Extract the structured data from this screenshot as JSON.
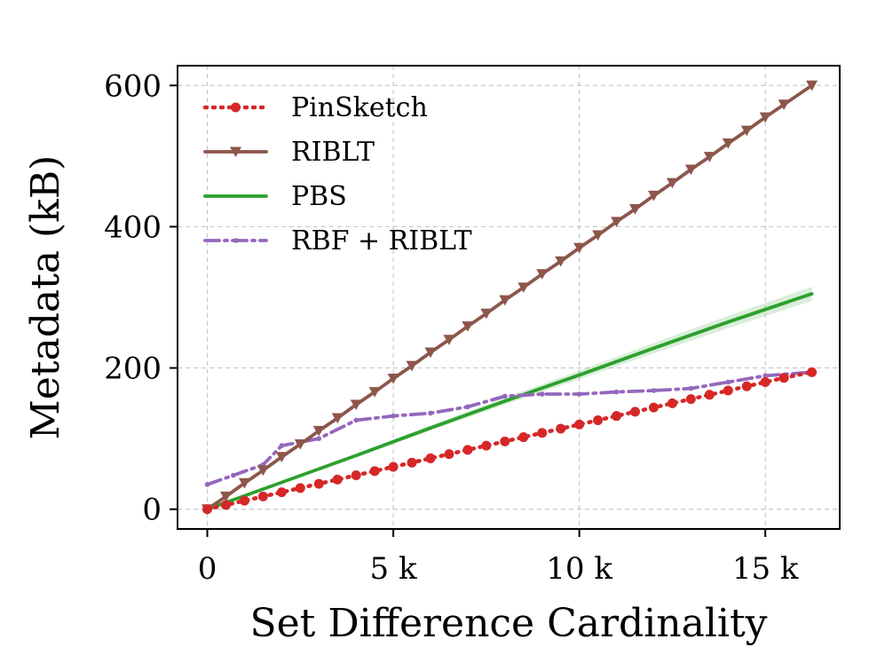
{
  "chart_data": {
    "type": "line",
    "xlabel": "Set Difference Cardinality",
    "ylabel": "Metadata (kB)",
    "xlim": [
      -800,
      17000
    ],
    "ylim": [
      -28,
      628
    ],
    "xticks": [
      0,
      5000,
      10000,
      15000
    ],
    "xtick_labels": [
      "0",
      "5 k",
      "10 k",
      "15 k"
    ],
    "yticks": [
      0,
      200,
      400,
      600
    ],
    "ytick_labels": [
      "0",
      "200",
      "400",
      "600"
    ],
    "grid": true,
    "legend_position": "top-left",
    "series": [
      {
        "name": "PinSketch",
        "color": "#d62728",
        "line_style": "dotted",
        "marker": "circle",
        "x": [
          0,
          500,
          1000,
          1500,
          2000,
          2500,
          3000,
          3500,
          4000,
          4500,
          5000,
          5500,
          6000,
          6500,
          7000,
          7500,
          8000,
          8500,
          9000,
          9500,
          10000,
          10500,
          11000,
          11500,
          12000,
          12500,
          13000,
          13500,
          14000,
          14500,
          15000,
          15500,
          16250
        ],
        "y": [
          0,
          6,
          12,
          18,
          24,
          30,
          36,
          42,
          48,
          54,
          60,
          66,
          72,
          78,
          84,
          90,
          96,
          102,
          108,
          114,
          120,
          126,
          132,
          138,
          144,
          150,
          156,
          162,
          168,
          174,
          180,
          186,
          194
        ]
      },
      {
        "name": "RIBLT",
        "color": "#8c564b",
        "line_style": "solid",
        "marker": "triangle-down",
        "x": [
          0,
          500,
          1000,
          1500,
          2000,
          2500,
          3000,
          3500,
          4000,
          4500,
          5000,
          5500,
          6000,
          6500,
          7000,
          7500,
          8000,
          8500,
          9000,
          9500,
          10000,
          10500,
          11000,
          11500,
          12000,
          12500,
          13000,
          13500,
          14000,
          14500,
          15000,
          15500,
          16250
        ],
        "y": [
          0,
          18,
          37,
          55,
          74,
          92,
          111,
          129,
          148,
          166,
          185,
          203,
          222,
          240,
          259,
          277,
          296,
          314,
          333,
          351,
          370,
          388,
          407,
          425,
          444,
          462,
          481,
          499,
          518,
          536,
          555,
          573,
          600
        ]
      },
      {
        "name": "PBS",
        "color": "#2ca02c",
        "line_style": "solid",
        "marker": "none",
        "x": [
          0,
          2000,
          4000,
          6000,
          8000,
          10000,
          12000,
          14000,
          16250
        ],
        "y": [
          0,
          38,
          76,
          115,
          153,
          190,
          228,
          265,
          305
        ]
      },
      {
        "name": "RBF + RIBLT",
        "color": "#9467bd",
        "line_style": "dashdot",
        "marker": "point",
        "x": [
          0,
          700,
          1500,
          2000,
          3000,
          4000,
          5000,
          6000,
          7000,
          8000,
          9000,
          10000,
          11000,
          12000,
          13000,
          14000,
          15000,
          16250
        ],
        "y": [
          35,
          48,
          63,
          90,
          100,
          126,
          132,
          136,
          145,
          160,
          163,
          163,
          166,
          168,
          171,
          180,
          189,
          194
        ]
      }
    ]
  }
}
